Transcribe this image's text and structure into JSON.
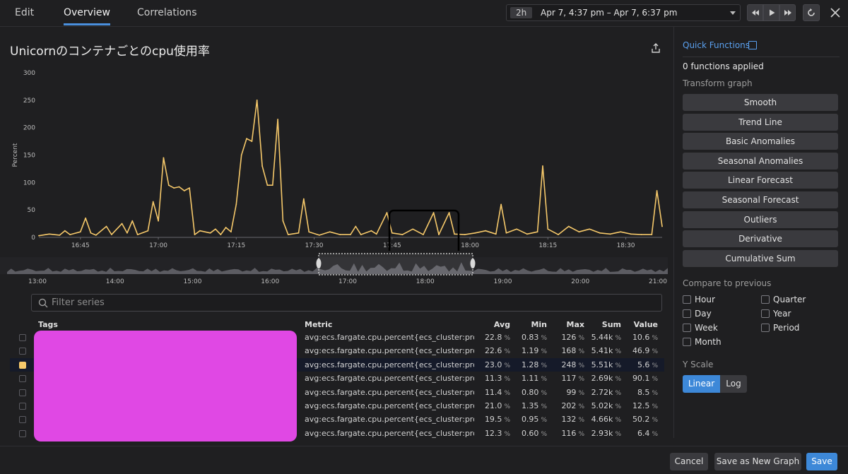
{
  "tabs": [
    {
      "label": "Edit"
    },
    {
      "label": "Overview"
    },
    {
      "label": "Correlations"
    }
  ],
  "time": {
    "badge": "2h",
    "range": "Apr 7, 4:37 pm – Apr 7, 6:37 pm"
  },
  "title": "Unicornのコンテナごとのcpu使用率",
  "search": {
    "placeholder": "Filter series"
  },
  "table": {
    "headers": [
      "Tags",
      "Metric",
      "Avg",
      "Min",
      "Max",
      "Sum",
      "Value"
    ],
    "rows": [
      {
        "metric": "avg:ecs.fargate.cpu.percent{ecs_cluster:productio...",
        "avg": "22.8",
        "min": "0.83",
        "max": "126",
        "sum": "5.44k",
        "value": "10.6",
        "checked": false
      },
      {
        "metric": "avg:ecs.fargate.cpu.percent{ecs_cluster:productio...",
        "avg": "22.6",
        "min": "1.19",
        "max": "168",
        "sum": "5.41k",
        "value": "46.9",
        "checked": false
      },
      {
        "metric": "avg:ecs.fargate.cpu.percent{ecs_cluster:productio...",
        "avg": "23.0",
        "min": "1.28",
        "max": "248",
        "sum": "5.51k",
        "value": "5.6",
        "checked": true
      },
      {
        "metric": "avg:ecs.fargate.cpu.percent{ecs_cluster:productio...",
        "avg": "11.3",
        "min": "1.11",
        "max": "117",
        "sum": "2.69k",
        "value": "90.1",
        "checked": false
      },
      {
        "metric": "avg:ecs.fargate.cpu.percent{ecs_cluster:productio...",
        "avg": "11.4",
        "min": "0.80",
        "max": "99",
        "sum": "2.72k",
        "value": "8.5",
        "checked": false
      },
      {
        "metric": "avg:ecs.fargate.cpu.percent{ecs_cluster:productio...",
        "avg": "21.0",
        "min": "1.35",
        "max": "202",
        "sum": "5.02k",
        "value": "12.5",
        "checked": false
      },
      {
        "metric": "avg:ecs.fargate.cpu.percent{ecs_cluster:productio...",
        "avg": "19.5",
        "min": "0.95",
        "max": "132",
        "sum": "4.66k",
        "value": "50.2",
        "checked": false
      },
      {
        "metric": "avg:ecs.fargate.cpu.percent{ecs_cluster:productio...",
        "avg": "12.3",
        "min": "0.60",
        "max": "116",
        "sum": "2.93k",
        "value": "6.4",
        "checked": false
      }
    ],
    "unit": "%"
  },
  "sidebar": {
    "quick_functions": "Quick Functions",
    "functions_applied": "0 functions applied",
    "transform_label": "Transform graph",
    "transforms": [
      "Smooth",
      "Trend Line",
      "Basic Anomalies",
      "Seasonal Anomalies",
      "Linear Forecast",
      "Seasonal Forecast",
      "Outliers",
      "Derivative",
      "Cumulative Sum"
    ],
    "compare_label": "Compare to previous",
    "compare_options": [
      "Hour",
      "Day",
      "Week",
      "Month",
      "Quarter",
      "Year",
      "Period"
    ],
    "yscale_label": "Y Scale",
    "yscale_options": [
      "Linear",
      "Log"
    ],
    "yscale_selected": "Linear"
  },
  "footer": {
    "cancel": "Cancel",
    "save_new": "Save as New Graph",
    "save": "Save"
  },
  "chart_data": {
    "type": "line",
    "ylabel": "Percent",
    "ylim": [
      0,
      300
    ],
    "yticks": [
      0,
      50,
      100,
      150,
      200,
      250,
      300
    ],
    "xtick_labels": [
      "16:45",
      "17:00",
      "17:15",
      "17:30",
      "17:45",
      "18:00",
      "18:15",
      "18:30"
    ],
    "xlim_minutes": [
      "16:37",
      "18:37"
    ],
    "series_color": "#f5c86a",
    "points": [
      [
        "16:37",
        3
      ],
      [
        "16:39",
        6
      ],
      [
        "16:41",
        4
      ],
      [
        "16:42",
        12
      ],
      [
        "16:43",
        5
      ],
      [
        "16:45",
        10
      ],
      [
        "16:46",
        35
      ],
      [
        "16:47",
        8
      ],
      [
        "16:48",
        4
      ],
      [
        "16:50",
        20
      ],
      [
        "16:51",
        5
      ],
      [
        "16:53",
        25
      ],
      [
        "16:54",
        8
      ],
      [
        "16:55",
        30
      ],
      [
        "16:56",
        5
      ],
      [
        "16:58",
        12
      ],
      [
        "16:59",
        65
      ],
      [
        "17:00",
        30
      ],
      [
        "17:01",
        145
      ],
      [
        "17:02",
        95
      ],
      [
        "17:03",
        90
      ],
      [
        "17:04",
        92
      ],
      [
        "17:05",
        85
      ],
      [
        "17:06",
        90
      ],
      [
        "17:07",
        5
      ],
      [
        "17:08",
        12
      ],
      [
        "17:10",
        8
      ],
      [
        "17:11",
        15
      ],
      [
        "17:12",
        5
      ],
      [
        "17:13",
        18
      ],
      [
        "17:14",
        10
      ],
      [
        "17:15",
        60
      ],
      [
        "17:16",
        150
      ],
      [
        "17:17",
        180
      ],
      [
        "17:18",
        175
      ],
      [
        "17:19",
        250
      ],
      [
        "17:20",
        130
      ],
      [
        "17:21",
        95
      ],
      [
        "17:22",
        95
      ],
      [
        "17:23",
        215
      ],
      [
        "17:24",
        30
      ],
      [
        "17:25",
        5
      ],
      [
        "17:27",
        8
      ],
      [
        "17:28",
        70
      ],
      [
        "17:29",
        10
      ],
      [
        "17:31",
        4
      ],
      [
        "17:33",
        10
      ],
      [
        "17:35",
        5
      ],
      [
        "17:37",
        5
      ],
      [
        "17:38",
        20
      ],
      [
        "17:39",
        5
      ],
      [
        "17:41",
        12
      ],
      [
        "17:42",
        6
      ],
      [
        "17:44",
        45
      ],
      [
        "17:45",
        8
      ],
      [
        "17:47",
        5
      ],
      [
        "17:49",
        15
      ],
      [
        "17:51",
        5
      ],
      [
        "17:53",
        45
      ],
      [
        "17:54",
        5
      ],
      [
        "17:56",
        45
      ],
      [
        "17:57",
        6
      ],
      [
        "17:59",
        5
      ],
      [
        "18:01",
        8
      ],
      [
        "18:03",
        12
      ],
      [
        "18:05",
        6
      ],
      [
        "18:06",
        60
      ],
      [
        "18:07",
        8
      ],
      [
        "18:09",
        15
      ],
      [
        "18:11",
        6
      ],
      [
        "18:13",
        10
      ],
      [
        "18:14",
        130
      ],
      [
        "18:15",
        15
      ],
      [
        "18:17",
        5
      ],
      [
        "18:19",
        20
      ],
      [
        "18:21",
        10
      ],
      [
        "18:23",
        15
      ],
      [
        "18:25",
        8
      ],
      [
        "18:27",
        6
      ],
      [
        "18:29",
        10
      ],
      [
        "18:31",
        6
      ],
      [
        "18:33",
        5
      ],
      [
        "18:35",
        5
      ],
      [
        "18:36",
        85
      ],
      [
        "18:37",
        20
      ]
    ],
    "navigator": {
      "xtick_labels": [
        "13:00",
        "14:00",
        "15:00",
        "16:00",
        "17:00",
        "18:00",
        "19:00",
        "20:00",
        "21:00"
      ]
    }
  }
}
